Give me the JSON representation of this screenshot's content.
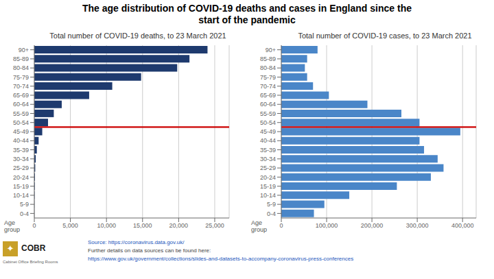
{
  "title": "The age distribution of COVID-19 deaths and cases in England since the\nstart of the pandemic",
  "chart_data": [
    {
      "type": "bar",
      "orientation": "horizontal",
      "title": "Total number of COVID-19 deaths, to 23 March 2021",
      "ylabel": "Age\ngroup",
      "categories": [
        "90+",
        "85-89",
        "80-84",
        "75-79",
        "70-74",
        "65-69",
        "60-64",
        "55-59",
        "50-54",
        "45-49",
        "40-44",
        "35-39",
        "30-34",
        "25-29",
        "20-24",
        "15-19",
        "10-14",
        "5-9",
        "0-4"
      ],
      "values": [
        24000,
        21500,
        19800,
        14800,
        10800,
        7600,
        3800,
        2700,
        1900,
        1100,
        600,
        350,
        200,
        130,
        90,
        60,
        35,
        15,
        10
      ],
      "color": "#1e3a6e",
      "xlim": [
        0,
        27000
      ],
      "xticks": [
        0,
        {
          "value": 5000,
          "label": "5,000"
        },
        {
          "value": 10000,
          "label": "10,000"
        },
        {
          "value": 15000,
          "label": "15,000"
        },
        {
          "value": 20000,
          "label": "20,000"
        },
        {
          "value": 25000,
          "label": "25,000"
        }
      ],
      "grid": true,
      "reference_line": {
        "category": "50-54",
        "color": "#cc0000"
      }
    },
    {
      "type": "bar",
      "orientation": "horizontal",
      "title": "Total number of COVID-19 cases, to 23 March 2021",
      "ylabel": "Age\ngroup",
      "categories": [
        "90+",
        "85-89",
        "80-84",
        "75-79",
        "70-74",
        "65-69",
        "60-64",
        "55-59",
        "50-54",
        "45-49",
        "40-44",
        "35-39",
        "30-34",
        "25-29",
        "20-24",
        "15-19",
        "10-14",
        "5-9",
        "0-4"
      ],
      "values": [
        80000,
        57000,
        52000,
        57000,
        70000,
        105000,
        190000,
        265000,
        305000,
        395000,
        305000,
        315000,
        345000,
        358000,
        330000,
        255000,
        150000,
        95000,
        72000
      ],
      "color": "#4a86c8",
      "xlim": [
        0,
        430000
      ],
      "xticks": [
        0,
        {
          "value": 100000,
          "label": "100,000"
        },
        {
          "value": 200000,
          "label": "200,000"
        },
        {
          "value": 300000,
          "label": "300,000"
        },
        {
          "value": 400000,
          "label": "400,000"
        }
      ],
      "grid": true,
      "reference_line": {
        "category": "50-54",
        "color": "#cc0000"
      }
    }
  ],
  "annotations": [
    {
      "text": "Source: https://coronavirus.data.gov.uk/",
      "color": "#2255bb"
    },
    {
      "text": "Further details on data sources can be found here:",
      "color": "#444444"
    },
    {
      "text": "https://www.gov.uk/government/collections/slides-and-datasets-to-accompany-coronavirus-press-conferences",
      "color": "#2255bb"
    }
  ],
  "branding": {
    "emblem": "✦",
    "emblem_color": "#c8a028",
    "name": "COBR",
    "subtitle": "Cabinet Office Briefing Rooms"
  }
}
